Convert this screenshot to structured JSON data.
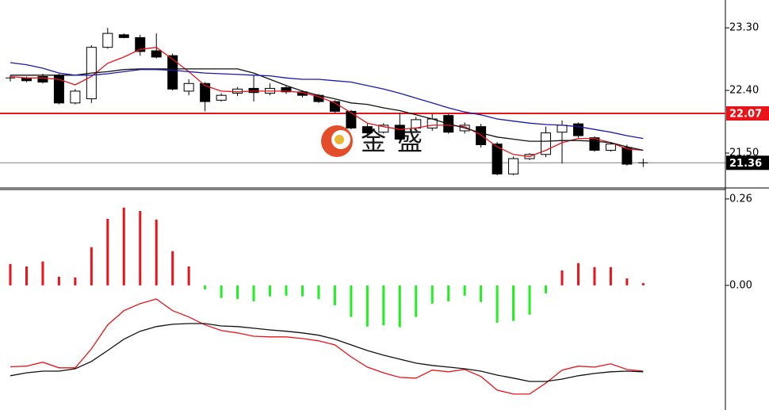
{
  "watermark": "金盛",
  "chart_data": [
    {
      "type": "candlestick",
      "open": [
        22.57,
        22.58,
        22.6,
        22.62,
        22.22,
        22.28,
        23.02,
        23.2,
        23.16,
        22.97,
        22.9,
        22.39,
        22.5,
        22.26,
        22.36,
        22.43,
        22.36,
        22.44,
        22.38,
        22.33,
        22.24,
        22.1,
        21.88,
        21.8,
        21.9,
        21.86,
        21.86,
        22.04,
        21.82,
        21.88,
        21.63,
        21.2,
        21.42,
        21.48,
        21.8,
        21.92,
        21.72,
        21.54,
        21.58,
        21.36
      ],
      "high": [
        22.62,
        22.6,
        22.64,
        22.64,
        22.42,
        23.05,
        23.3,
        23.22,
        23.2,
        23.22,
        22.93,
        22.56,
        22.52,
        22.36,
        22.45,
        22.62,
        22.5,
        22.47,
        22.4,
        22.35,
        22.26,
        22.12,
        21.92,
        21.93,
        22.08,
        22.02,
        22.06,
        22.06,
        21.94,
        21.92,
        21.66,
        21.45,
        21.5,
        21.88,
        21.97,
        21.94,
        21.74,
        21.66,
        21.62,
        21.42
      ],
      "low": [
        22.53,
        22.52,
        22.5,
        22.2,
        22.2,
        22.22,
        23.0,
        23.15,
        22.9,
        22.86,
        22.4,
        22.33,
        22.1,
        22.24,
        22.32,
        22.24,
        22.33,
        22.35,
        22.3,
        22.22,
        22.08,
        21.84,
        21.76,
        21.78,
        21.68,
        21.84,
        21.82,
        21.78,
        21.78,
        21.58,
        21.18,
        21.18,
        21.4,
        21.44,
        21.35,
        21.72,
        21.52,
        21.52,
        21.32,
        21.3
      ],
      "close": [
        22.58,
        22.54,
        22.52,
        22.22,
        22.39,
        23.02,
        23.22,
        23.16,
        22.96,
        22.88,
        22.42,
        22.5,
        22.24,
        22.33,
        22.42,
        22.37,
        22.43,
        22.38,
        22.33,
        22.24,
        22.1,
        21.86,
        21.79,
        21.9,
        21.7,
        21.98,
        21.99,
        21.8,
        21.9,
        21.62,
        21.2,
        21.42,
        21.48,
        21.79,
        21.9,
        21.75,
        21.54,
        21.63,
        21.34,
        21.36
      ],
      "up_color": "#ffffff",
      "down_color": "#000000",
      "ma_series": [
        {
          "color": "#e8141a",
          "values": [
            22.6,
            22.58,
            22.58,
            22.56,
            22.48,
            22.6,
            22.79,
            22.88,
            22.99,
            23.02,
            22.85,
            22.67,
            22.47,
            22.39,
            22.38,
            22.39,
            22.39,
            22.39,
            22.37,
            22.31,
            22.22,
            22.08,
            21.93,
            21.88,
            21.84,
            21.86,
            21.9,
            21.9,
            21.88,
            21.76,
            21.59,
            21.48,
            21.45,
            21.54,
            21.65,
            21.71,
            21.71,
            21.65,
            21.56,
            21.54
          ]
        },
        {
          "color": "#111111",
          "values": [
            22.62,
            22.62,
            22.62,
            22.62,
            22.62,
            22.65,
            22.67,
            22.7,
            22.71,
            22.71,
            22.71,
            22.71,
            22.71,
            22.71,
            22.71,
            22.65,
            22.56,
            22.47,
            22.39,
            22.33,
            22.28,
            22.22,
            22.2,
            22.15,
            22.11,
            22.05,
            21.99,
            21.92,
            21.86,
            21.79,
            21.73,
            21.7,
            21.67,
            21.67,
            21.68,
            21.68,
            21.67,
            21.65,
            21.59,
            21.54
          ]
        },
        {
          "color": "#1a1aa8",
          "values": [
            22.8,
            22.77,
            22.72,
            22.65,
            22.62,
            22.62,
            22.64,
            22.67,
            22.7,
            22.7,
            22.69,
            22.67,
            22.65,
            22.64,
            22.63,
            22.62,
            22.61,
            22.58,
            22.56,
            22.56,
            22.54,
            22.52,
            22.47,
            22.42,
            22.36,
            22.29,
            22.22,
            22.15,
            22.09,
            22.05,
            21.99,
            21.96,
            21.93,
            21.91,
            21.9,
            21.88,
            21.84,
            21.8,
            21.75,
            21.71
          ]
        }
      ],
      "price_lines": [
        {
          "value": 22.07,
          "color": "#e8141a"
        },
        {
          "value": 21.36,
          "color": "#000000"
        }
      ],
      "ylim": [
        21.01,
        23.7
      ],
      "yticks": [
        {
          "value": 23.3,
          "label": "23.30"
        },
        {
          "value": 22.4,
          "label": "22.40"
        },
        {
          "value": 21.5,
          "label": "21.50"
        }
      ]
    },
    {
      "type": "macd",
      "values": [
        0.064,
        0.057,
        0.072,
        0.026,
        0.024,
        0.115,
        0.2,
        0.234,
        0.224,
        0.198,
        0.103,
        0.057,
        -0.012,
        -0.038,
        -0.041,
        -0.048,
        -0.033,
        -0.031,
        -0.033,
        -0.041,
        -0.06,
        -0.095,
        -0.124,
        -0.12,
        -0.126,
        -0.095,
        -0.055,
        -0.048,
        -0.031,
        -0.05,
        -0.112,
        -0.107,
        -0.088,
        -0.024,
        0.045,
        0.067,
        0.055,
        0.055,
        0.021,
        0.007
      ],
      "up_color": "#e8141a",
      "down_color": "#22ee22",
      "series": [
        {
          "color": "#e8141a",
          "values": [
            -0.245,
            -0.243,
            -0.231,
            -0.248,
            -0.248,
            -0.191,
            -0.119,
            -0.076,
            -0.055,
            -0.041,
            -0.076,
            -0.095,
            -0.119,
            -0.136,
            -0.143,
            -0.153,
            -0.155,
            -0.155,
            -0.16,
            -0.167,
            -0.179,
            -0.215,
            -0.246,
            -0.263,
            -0.277,
            -0.279,
            -0.255,
            -0.26,
            -0.253,
            -0.274,
            -0.315,
            -0.327,
            -0.327,
            -0.294,
            -0.255,
            -0.243,
            -0.246,
            -0.236,
            -0.253,
            -0.258
          ]
        },
        {
          "color": "#111111",
          "values": [
            -0.272,
            -0.263,
            -0.258,
            -0.258,
            -0.251,
            -0.229,
            -0.196,
            -0.162,
            -0.138,
            -0.124,
            -0.117,
            -0.115,
            -0.115,
            -0.122,
            -0.124,
            -0.129,
            -0.134,
            -0.138,
            -0.143,
            -0.15,
            -0.162,
            -0.179,
            -0.196,
            -0.21,
            -0.222,
            -0.234,
            -0.241,
            -0.246,
            -0.251,
            -0.258,
            -0.27,
            -0.279,
            -0.289,
            -0.289,
            -0.282,
            -0.272,
            -0.265,
            -0.26,
            -0.258,
            -0.26
          ]
        }
      ],
      "ylim": [
        -0.375,
        0.286
      ],
      "yticks": [
        {
          "value": 0.26,
          "label": "0.26"
        },
        {
          "value": 0,
          "label": "0.00"
        }
      ]
    }
  ]
}
